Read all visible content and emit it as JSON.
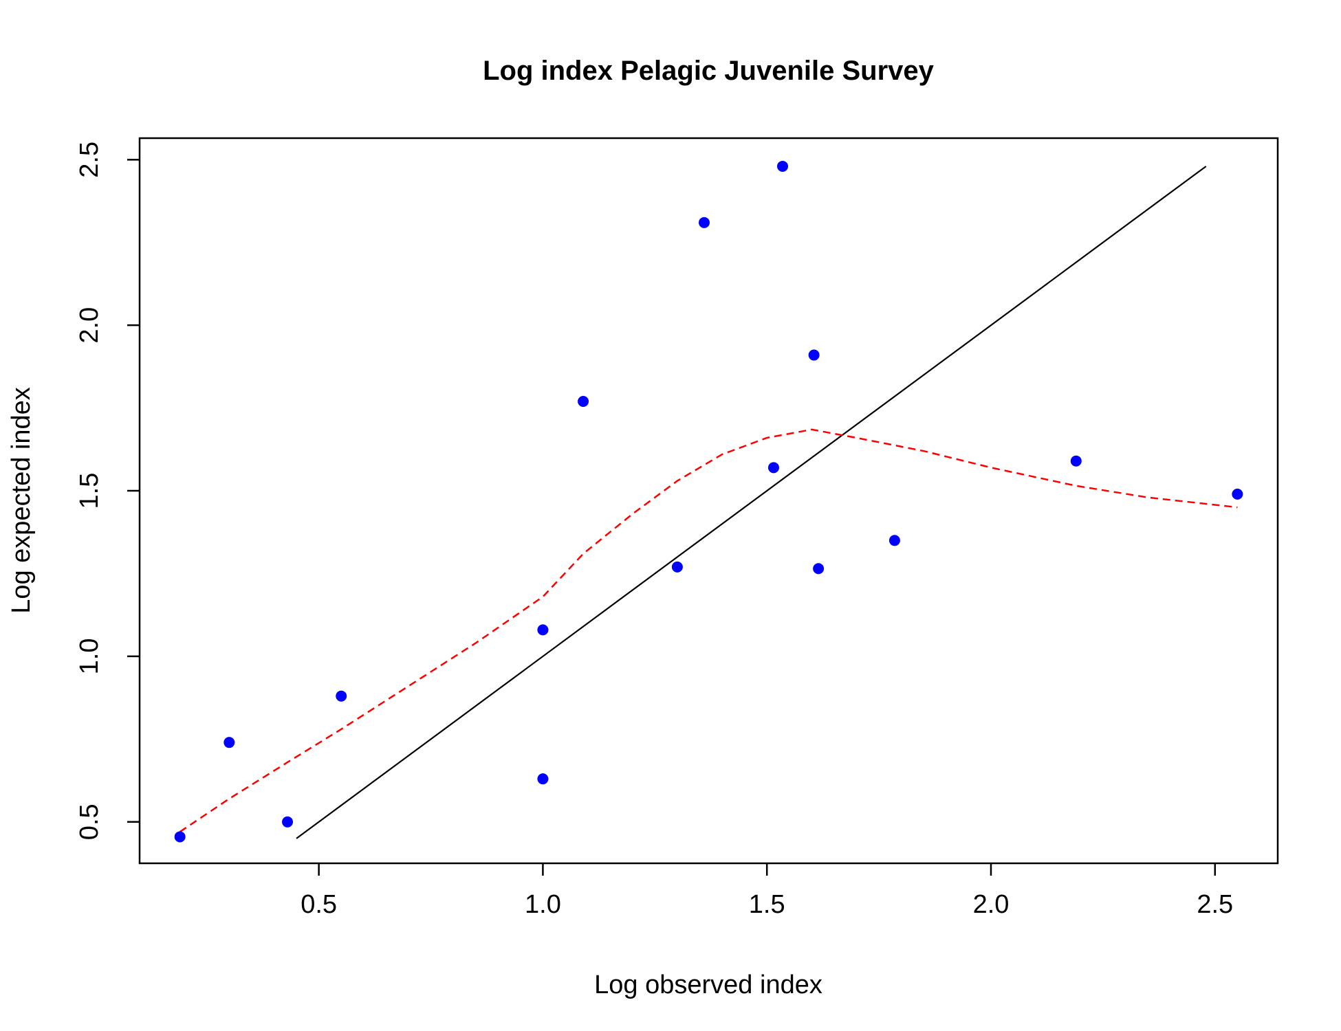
{
  "chart_data": {
    "type": "scatter",
    "title": "Log index Pelagic Juvenile Survey",
    "xlabel": "Log observed index",
    "ylabel": "Log expected index",
    "xlim": [
      0.1,
      2.64
    ],
    "ylim": [
      0.375,
      2.565
    ],
    "xticks": [
      0.5,
      1.0,
      1.5,
      2.0,
      2.5
    ],
    "xtick_labels": [
      "0.5",
      "1.0",
      "1.5",
      "2.0",
      "2.5"
    ],
    "yticks": [
      0.5,
      1.0,
      1.5,
      2.0,
      2.5
    ],
    "ytick_labels": [
      "0.5",
      "1.0",
      "1.5",
      "2.0",
      "2.5"
    ],
    "grid": false,
    "colors": {
      "points": "#0000ff",
      "smooth": "#ff0000",
      "reference": "#000000"
    },
    "points": [
      {
        "x": 0.19,
        "y": 0.455
      },
      {
        "x": 0.3,
        "y": 0.74
      },
      {
        "x": 0.43,
        "y": 0.5
      },
      {
        "x": 0.55,
        "y": 0.88
      },
      {
        "x": 1.0,
        "y": 0.63
      },
      {
        "x": 1.0,
        "y": 1.08
      },
      {
        "x": 1.09,
        "y": 1.77
      },
      {
        "x": 1.3,
        "y": 1.27
      },
      {
        "x": 1.36,
        "y": 2.31
      },
      {
        "x": 1.515,
        "y": 1.57
      },
      {
        "x": 1.535,
        "y": 2.48
      },
      {
        "x": 1.605,
        "y": 1.91
      },
      {
        "x": 1.615,
        "y": 1.265
      },
      {
        "x": 1.785,
        "y": 1.35
      },
      {
        "x": 2.19,
        "y": 1.59
      },
      {
        "x": 2.55,
        "y": 1.49
      }
    ],
    "reference_line": {
      "x": [
        0.45,
        2.48
      ],
      "y": [
        0.45,
        2.48
      ]
    },
    "smooth_line": {
      "x": [
        0.19,
        0.3,
        0.43,
        0.55,
        0.7,
        0.85,
        1.0,
        1.09,
        1.2,
        1.3,
        1.4,
        1.5,
        1.6,
        1.7,
        1.85,
        2.0,
        2.19,
        2.35,
        2.55
      ],
      "y": [
        0.47,
        0.57,
        0.68,
        0.78,
        0.91,
        1.04,
        1.18,
        1.31,
        1.43,
        1.53,
        1.61,
        1.66,
        1.685,
        1.66,
        1.62,
        1.57,
        1.515,
        1.48,
        1.45
      ]
    }
  }
}
